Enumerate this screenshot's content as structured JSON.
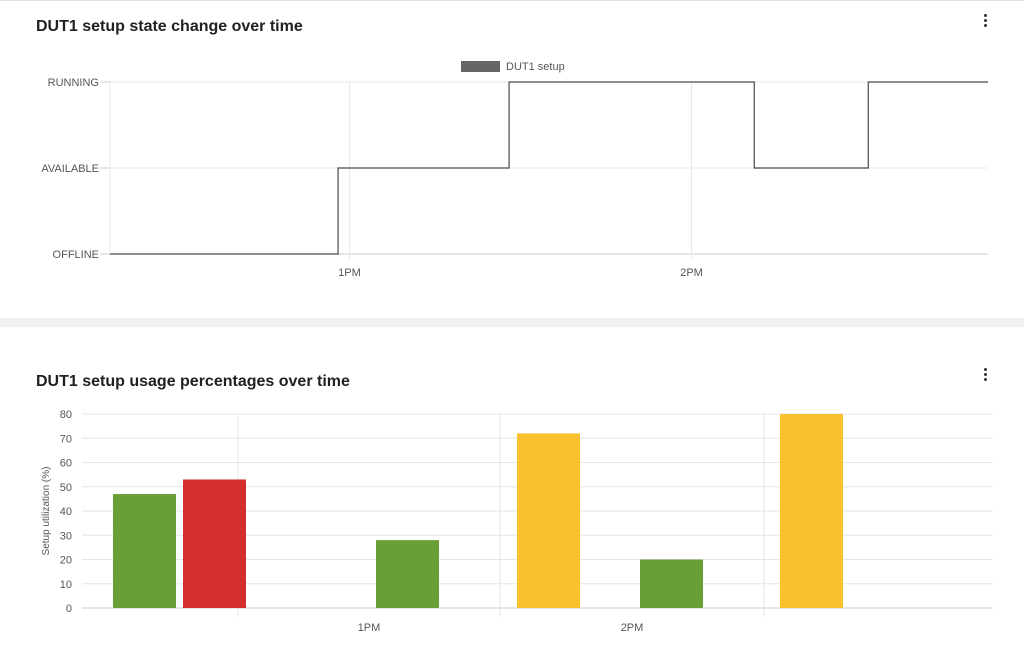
{
  "state_card": {
    "title": "DUT1 setup state change over time",
    "menu_icon": "more-vert-icon"
  },
  "usage_card": {
    "title": "DUT1 setup usage percentages over time",
    "menu_icon": "more-vert-icon"
  },
  "chart_data": [
    {
      "type": "line",
      "step": true,
      "title": "DUT1 setup state change over time",
      "legend": {
        "position": "top-center",
        "entries": [
          "DUT1 setup"
        ]
      },
      "y_categories": [
        "OFFLINE",
        "AVAILABLE",
        "RUNNING"
      ],
      "x_ticks": [
        "1PM",
        "2PM"
      ],
      "x_ticks_time": [
        "13:00",
        "14:00"
      ],
      "x_range": [
        "12:18",
        "14:52"
      ],
      "grid": true,
      "series": [
        {
          "name": "DUT1 setup",
          "color": "#666666",
          "points": [
            {
              "x": "12:18",
              "y": "OFFLINE"
            },
            {
              "x": "12:58",
              "y": "AVAILABLE"
            },
            {
              "x": "13:28",
              "y": "RUNNING"
            },
            {
              "x": "14:11",
              "y": "AVAILABLE"
            },
            {
              "x": "14:31",
              "y": "RUNNING"
            },
            {
              "x": "14:52",
              "y": "RUNNING"
            }
          ]
        }
      ]
    },
    {
      "type": "bar",
      "title": "DUT1 setup usage percentages over time",
      "ylabel": "Setup utilization (%)",
      "ylim": [
        0,
        80
      ],
      "y_ticks": [
        0,
        10,
        20,
        30,
        40,
        50,
        60,
        70,
        80
      ],
      "x_ticks": [
        "1PM",
        "2PM"
      ],
      "grid": true,
      "bars": [
        {
          "value": 47,
          "color": "#689f38"
        },
        {
          "value": 53,
          "color": "#d32f2f"
        },
        {
          "value": 28,
          "color": "#689f38"
        },
        {
          "value": 72,
          "color": "#fbc02d"
        },
        {
          "value": 20,
          "color": "#689f38"
        },
        {
          "value": 80,
          "color": "#fbc02d"
        }
      ]
    }
  ]
}
